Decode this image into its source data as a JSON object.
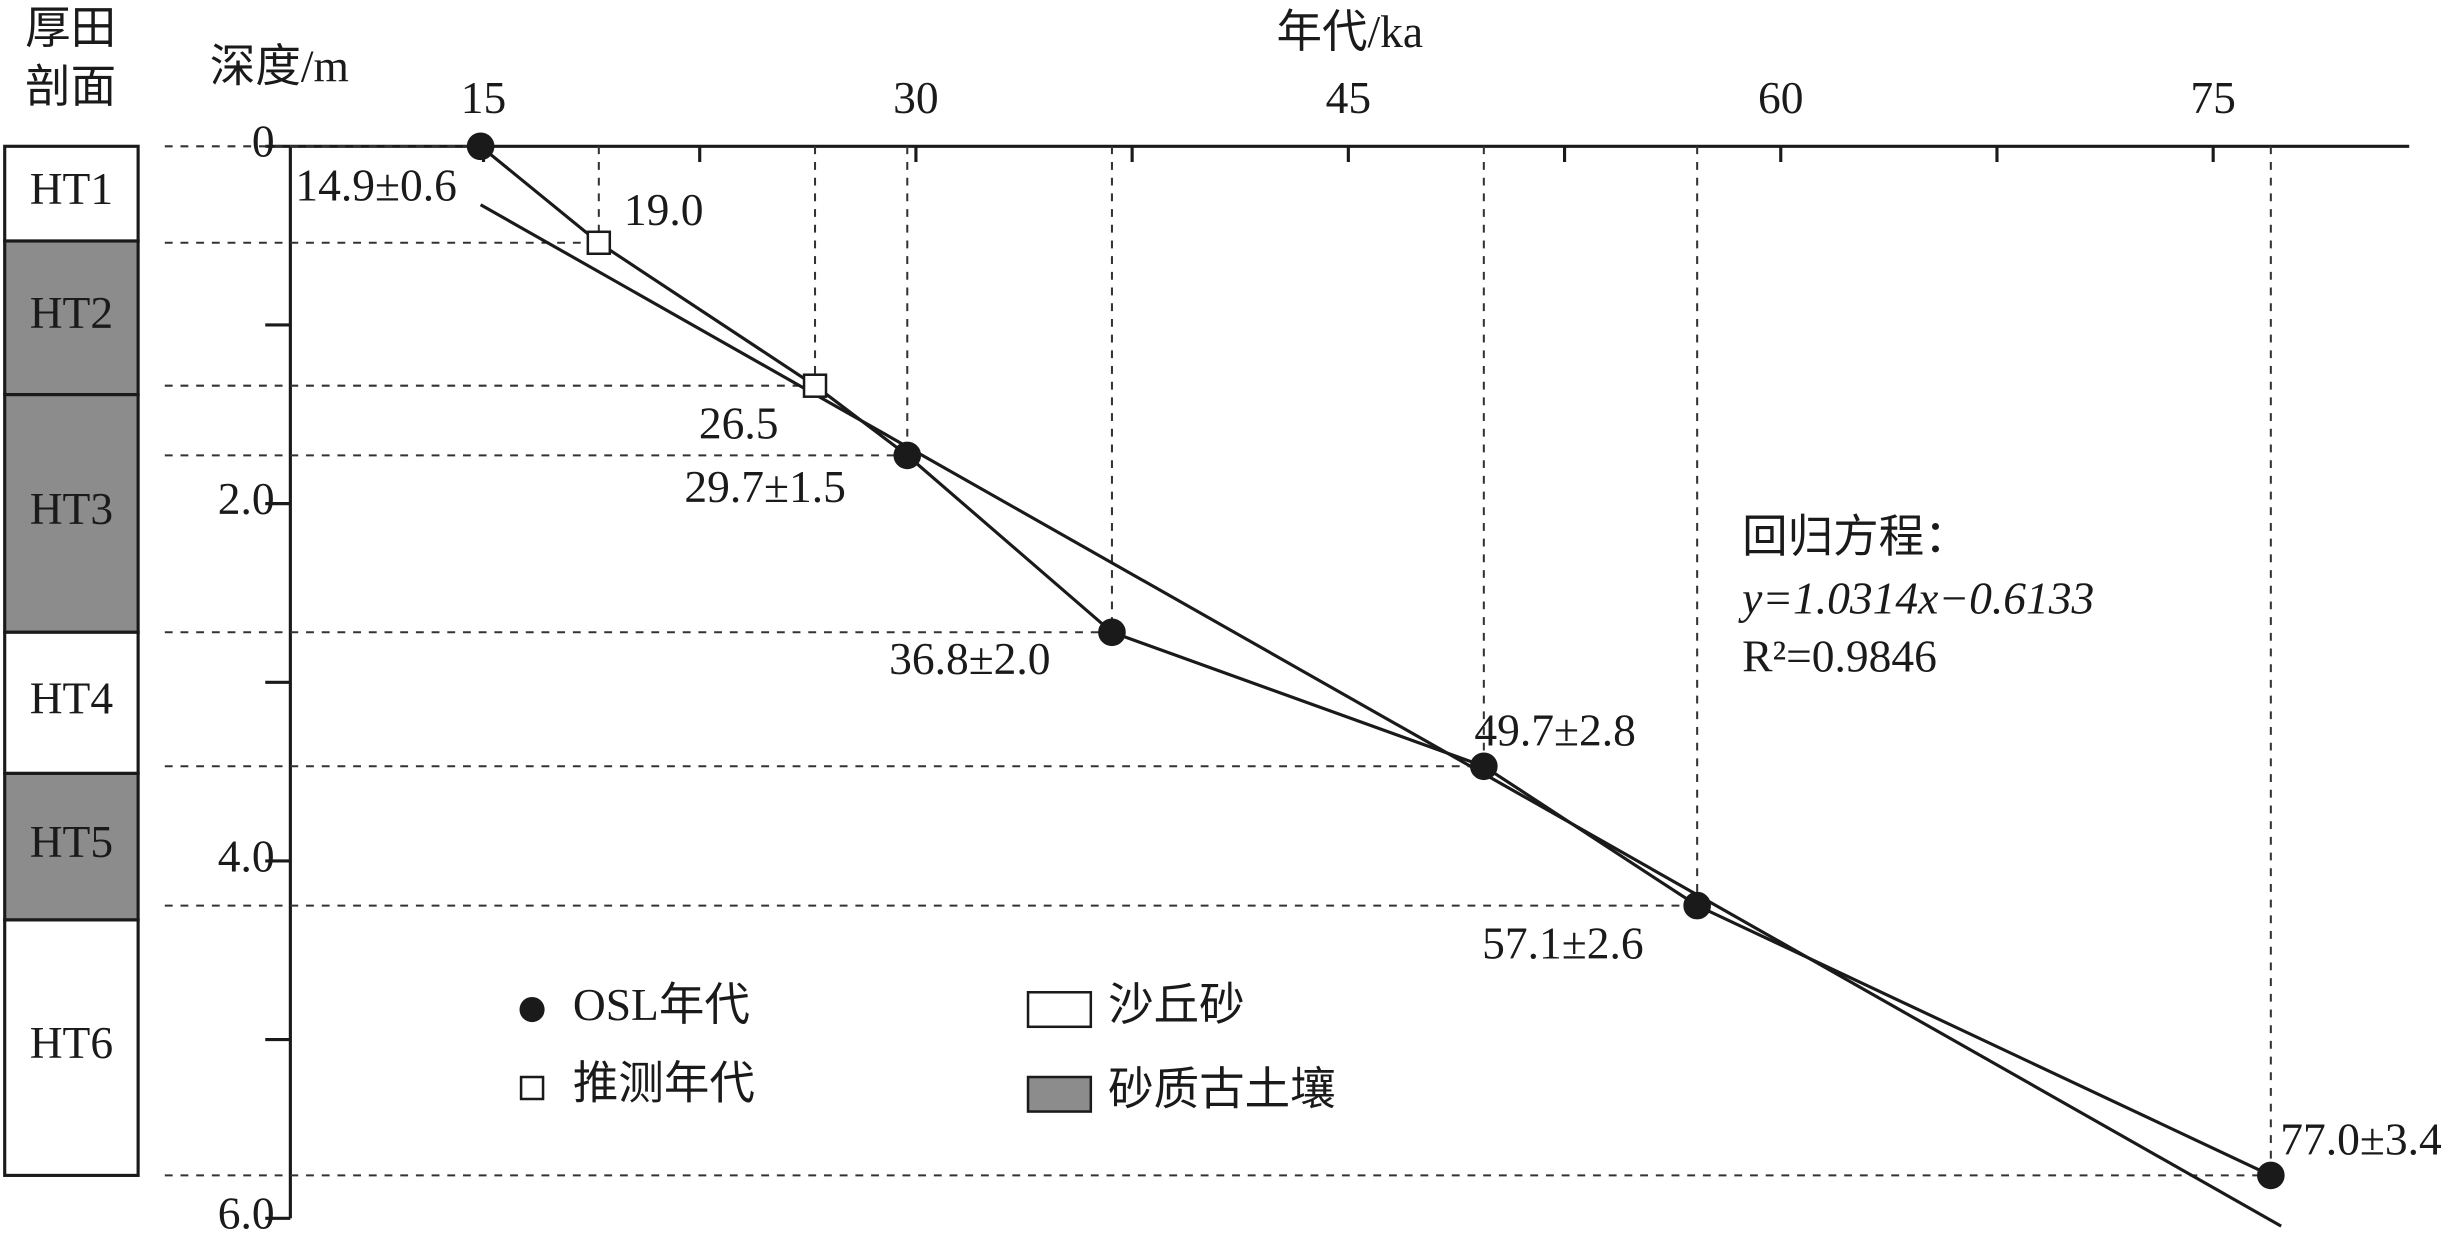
{
  "chart_data": {
    "type": "scatter",
    "title": "年代/ka",
    "y_label": "深度/m",
    "column_title": [
      "厚田",
      "剖面"
    ],
    "xlim": [
      8.3,
      81.8
    ],
    "xticks": [
      15,
      30,
      45,
      60,
      75
    ],
    "x_minor_ticks": [
      22.5,
      37.5,
      52.5,
      67.5
    ],
    "ylim": [
      0,
      6
    ],
    "yticks": [
      0,
      {
        "value": 2,
        "label": "2.0"
      },
      {
        "value": 4,
        "label": "4.0"
      },
      {
        "value": 6,
        "label": "6.0"
      }
    ],
    "y_minor_ticks": [
      1,
      3,
      5
    ],
    "series": [
      {
        "name": "OSL年代",
        "color": "#1a1a1a",
        "marker": "circle",
        "x": [
          14.9,
          29.7,
          36.8,
          49.7,
          57.1,
          77.0
        ],
        "values": [
          0,
          1.73,
          2.72,
          3.47,
          4.25,
          5.76
        ],
        "value_labels": [
          "14.9±0.6",
          "29.7±1.5",
          "36.8±2.0",
          "49.7±2.8",
          "57.1±2.6",
          "77.0±3.4"
        ]
      },
      {
        "name": "推测年代",
        "color": "#ffffff",
        "marker": "square",
        "x": [
          19.0,
          26.5
        ],
        "values": [
          0.54,
          1.34
        ],
        "value_labels": [
          "19.0",
          "26.5"
        ]
      }
    ],
    "regression": {
      "title": "回归方程：",
      "equation": "y=1.0314x−0.6133",
      "r2": "R²=0.9846"
    },
    "strata_legend": [
      {
        "label": "沙丘砂",
        "color": "#ffffff"
      },
      {
        "label": "砂质古土壤",
        "color": "#8c8c8c"
      }
    ],
    "strata": [
      {
        "name": "HT1",
        "top": 0,
        "bottom": 0.53,
        "legend": 0
      },
      {
        "name": "HT2",
        "top": 0.53,
        "bottom": 1.39,
        "legend": 1
      },
      {
        "name": "HT3",
        "top": 1.39,
        "bottom": 2.72,
        "legend": 1
      },
      {
        "name": "HT4",
        "top": 2.72,
        "bottom": 3.51,
        "legend": 0
      },
      {
        "name": "HT5",
        "top": 3.51,
        "bottom": 4.33,
        "legend": 1
      },
      {
        "name": "HT6",
        "top": 4.33,
        "bottom": 5.76,
        "legend": 0
      }
    ]
  }
}
